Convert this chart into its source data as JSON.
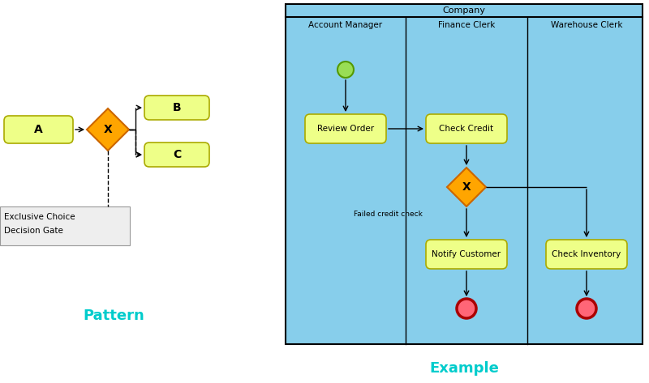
{
  "bg_color": "#ffffff",
  "cyan_bg": "#87CEEB",
  "yellow_task": "#EEFF88",
  "yellow_task_border": "#AAAA00",
  "orange_diamond": "#FFA500",
  "orange_diamond_border": "#CC6600",
  "green_circle_fill": "#99DD55",
  "green_circle_border": "#559900",
  "red_circle_fill": "#FF6677",
  "red_circle_border": "#AA0000",
  "pattern_label": "Pattern",
  "example_label": "Example",
  "label_color": "#00CCCC",
  "company_label": "Company",
  "lane_labels": [
    "Account Manager",
    "Finance Clerk",
    "Warehouse Clerk"
  ],
  "note_text_line1": "Exclusive Choice",
  "note_text_line2": "Decision Gate",
  "note_bg": "#EEEEEE",
  "failed_label": "Failed credit check"
}
